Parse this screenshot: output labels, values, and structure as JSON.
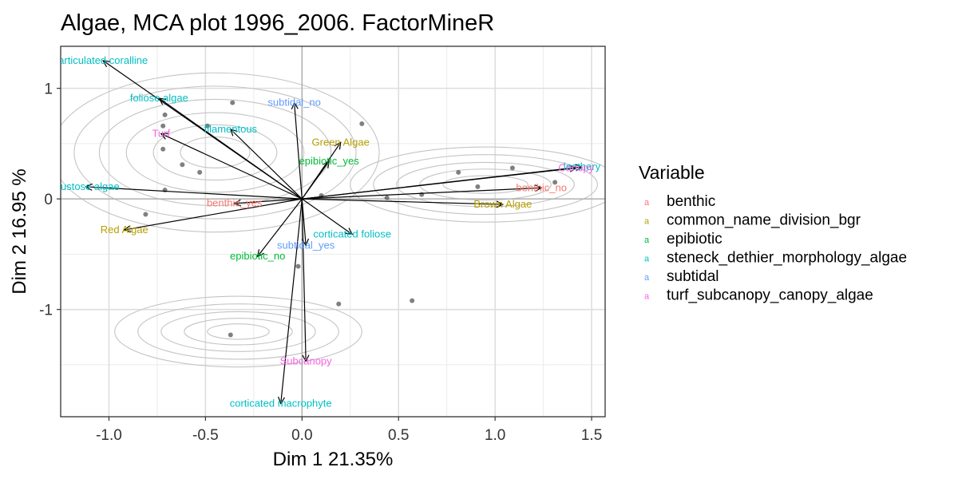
{
  "chart_data": {
    "type": "scatter",
    "title": "Algae,  MCA plot 1996_2006. FactorMineR",
    "xlabel": "Dim 1  21.35%",
    "ylabel": "Dim 2 16.95 %",
    "xlim": [
      -1.25,
      1.57
    ],
    "ylim": [
      -1.97,
      1.38
    ],
    "xticks": [
      -1.0,
      -0.5,
      0.0,
      0.5,
      1.0,
      1.5
    ],
    "xtick_labels": [
      "-1.0",
      "-0.5",
      "0.0",
      "0.5",
      "1.0",
      "1.5"
    ],
    "yticks": [
      -1,
      0,
      1
    ],
    "ytick_labels": [
      "-1",
      "0",
      "1"
    ],
    "grid": true,
    "legend": {
      "title": "Variable",
      "placement": "right",
      "key_glyph": "a",
      "entries": [
        {
          "name": "benthic",
          "color": "#F8766D"
        },
        {
          "name": "common_name_division_bgr",
          "color": "#B79F00"
        },
        {
          "name": "epibiotic",
          "color": "#00BA38"
        },
        {
          "name": "steneck_dethier_morphology_algae",
          "color": "#00BFC4"
        },
        {
          "name": "subtidal",
          "color": "#619CFF"
        },
        {
          "name": "turf_subcanopy_canopy_algae",
          "color": "#F564E3"
        }
      ]
    },
    "arrows": [
      {
        "label": "articulated coralline",
        "variable": "steneck_dethier_morphology_algae",
        "x": -1.03,
        "y": 1.25
      },
      {
        "label": "foliose algae",
        "variable": "steneck_dethier_morphology_algae",
        "x": -0.74,
        "y": 0.91
      },
      {
        "label": "filamentous",
        "variable": "steneck_dethier_morphology_algae",
        "x": -0.37,
        "y": 0.63
      },
      {
        "label": "Turf",
        "variable": "turf_subcanopy_canopy_algae",
        "x": -0.73,
        "y": 0.59
      },
      {
        "label": "subtidal_no",
        "variable": "subtidal",
        "x": -0.04,
        "y": 0.87
      },
      {
        "label": "Green Algae",
        "variable": "common_name_division_bgr",
        "x": 0.2,
        "y": 0.51
      },
      {
        "label": "epibiotic_yes",
        "variable": "epibiotic",
        "x": 0.14,
        "y": 0.34
      },
      {
        "label": "crustose algae",
        "variable": "steneck_dethier_morphology_algae",
        "x": -1.12,
        "y": 0.11
      },
      {
        "label": "benthic_yes",
        "variable": "benthic",
        "x": -0.35,
        "y": -0.04
      },
      {
        "label": "Red Algae",
        "variable": "common_name_division_bgr",
        "x": -0.92,
        "y": -0.28
      },
      {
        "label": "leathery",
        "variable": "steneck_dethier_morphology_algae",
        "x": 1.45,
        "y": 0.29
      },
      {
        "label": "Canopy",
        "variable": "turf_subcanopy_canopy_algae",
        "x": 1.42,
        "y": 0.28
      },
      {
        "label": "benthic_no",
        "variable": "benthic",
        "x": 1.24,
        "y": 0.1
      },
      {
        "label": "Brown Algae",
        "variable": "common_name_division_bgr",
        "x": 1.04,
        "y": -0.05
      },
      {
        "label": "corticated foliose",
        "variable": "steneck_dethier_morphology_algae",
        "x": 0.26,
        "y": -0.32
      },
      {
        "label": "subtidal_yes",
        "variable": "subtidal",
        "x": 0.02,
        "y": -0.42
      },
      {
        "label": "epibiotic_no",
        "variable": "epibiotic",
        "x": -0.23,
        "y": -0.52
      },
      {
        "label": "Subcanopy",
        "variable": "turf_subcanopy_canopy_algae",
        "x": 0.02,
        "y": -1.47
      },
      {
        "label": "corticated macrophyte",
        "variable": "steneck_dethier_morphology_algae",
        "x": -0.11,
        "y": -1.85
      }
    ],
    "points": [
      {
        "x": -0.36,
        "y": 0.87
      },
      {
        "x": -0.71,
        "y": 0.76
      },
      {
        "x": -0.49,
        "y": 0.66
      },
      {
        "x": -0.72,
        "y": 0.66
      },
      {
        "x": 0.31,
        "y": 0.68
      },
      {
        "x": -0.72,
        "y": 0.45
      },
      {
        "x": -0.62,
        "y": 0.31
      },
      {
        "x": -0.53,
        "y": 0.24
      },
      {
        "x": -0.71,
        "y": 0.08
      },
      {
        "x": -0.81,
        "y": -0.14
      },
      {
        "x": 0.1,
        "y": 0.03
      },
      {
        "x": 0.44,
        "y": 0.01
      },
      {
        "x": 0.62,
        "y": 0.04
      },
      {
        "x": 0.81,
        "y": 0.24
      },
      {
        "x": 0.91,
        "y": 0.11
      },
      {
        "x": 1.09,
        "y": 0.28
      },
      {
        "x": 1.31,
        "y": 0.15
      },
      {
        "x": -0.02,
        "y": -0.61
      },
      {
        "x": 0.19,
        "y": -0.95
      },
      {
        "x": 0.57,
        "y": -0.92
      },
      {
        "x": -0.37,
        "y": -1.23
      }
    ],
    "density_contours": [
      {
        "cx": -0.45,
        "cy": 0.42,
        "rx": [
          0.18,
          0.32,
          0.46,
          0.6,
          0.73,
          0.85
        ],
        "ry": [
          0.14,
          0.25,
          0.36,
          0.48,
          0.6,
          0.72
        ]
      },
      {
        "cx": 0.95,
        "cy": 0.13,
        "rx": [
          0.22,
          0.34,
          0.46,
          0.58,
          0.7
        ],
        "ry": [
          0.08,
          0.14,
          0.2,
          0.27,
          0.34
        ]
      },
      {
        "cx": -0.33,
        "cy": -1.2,
        "rx": [
          0.16,
          0.28,
          0.4,
          0.52,
          0.64
        ],
        "ry": [
          0.07,
          0.12,
          0.18,
          0.25,
          0.32
        ]
      }
    ]
  }
}
